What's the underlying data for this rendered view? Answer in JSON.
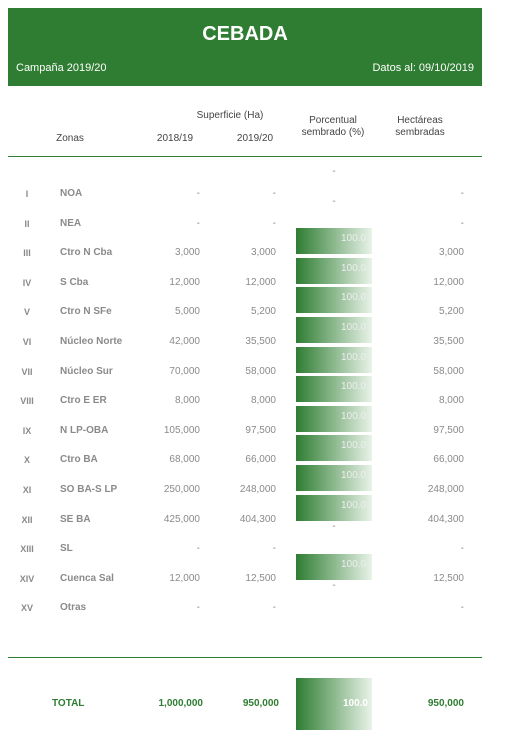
{
  "header": {
    "title": "CEBADA",
    "campaign": "Campaña 2019/20",
    "date": "Datos al: 09/10/2019"
  },
  "table": {
    "group_header": "Superficie (Ha)",
    "columns": [
      "Zonas",
      "2018/19",
      "2019/20",
      "Porcentual sembrado (%)",
      "Hectáreas sembradas"
    ],
    "rows": [
      [
        "I",
        "NOA",
        "-",
        "-",
        "-",
        "-"
      ],
      [
        "II",
        "NEA",
        "-",
        "-",
        "-",
        "-"
      ],
      [
        "III",
        "Ctro N Cba",
        "3,000",
        "3,000",
        "100.0",
        "3,000"
      ],
      [
        "IV",
        "S Cba",
        "12,000",
        "12,000",
        "100.0",
        "12,000"
      ],
      [
        "V",
        "Ctro N SFe",
        "5,000",
        "5,200",
        "100.0",
        "5,200"
      ],
      [
        "VI",
        "Núcleo Norte",
        "42,000",
        "35,500",
        "100.0",
        "35,500"
      ],
      [
        "VII",
        "Núcleo Sur",
        "70,000",
        "58,000",
        "100.0",
        "58,000"
      ],
      [
        "VIII",
        "Ctro E ER",
        "8,000",
        "8,000",
        "100.0",
        "8,000"
      ],
      [
        "IX",
        "N LP-OBA",
        "105,000",
        "97,500",
        "100.0",
        "97,500"
      ],
      [
        "X",
        "Ctro BA",
        "68,000",
        "66,000",
        "100.0",
        "66,000"
      ],
      [
        "XI",
        "SO BA-S LP",
        "250,000",
        "248,000",
        "100.0",
        "248,000"
      ],
      [
        "XII",
        "SE BA",
        "425,000",
        "404,300",
        "100.0",
        "404,300"
      ],
      [
        "XIII",
        "SL",
        "-",
        "-",
        "-",
        "-"
      ],
      [
        "XIV",
        "Cuenca Sal",
        "12,000",
        "12,500",
        "100.0",
        "12,500"
      ],
      [
        "XV",
        "Otras",
        "-",
        "-",
        "-",
        "-"
      ]
    ],
    "total": [
      "TOTAL",
      "1,000,000",
      "950,000",
      "100.0",
      "950,000"
    ]
  }
}
